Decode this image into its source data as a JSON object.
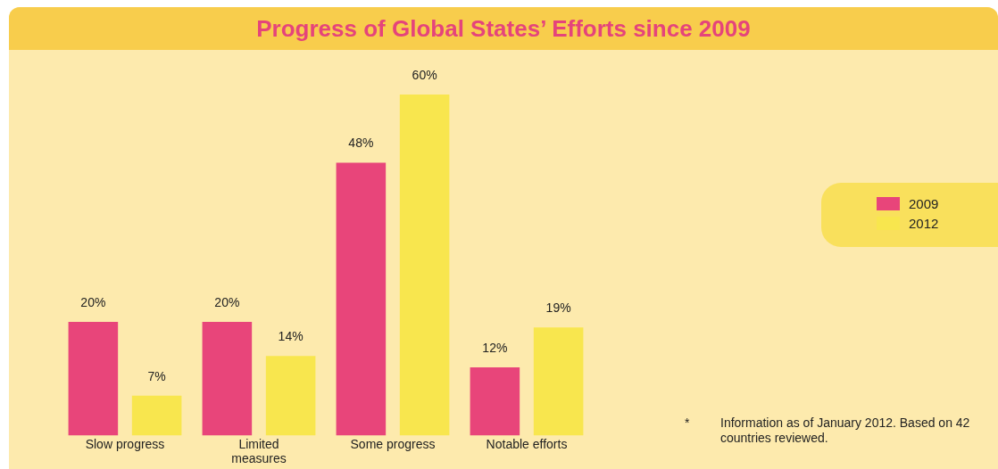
{
  "chart_data": {
    "type": "bar",
    "title": "Progress of Global States’ Efforts since 2009",
    "categories": [
      "Slow progress",
      "Limited measures",
      "Some progress",
      "Notable efforts"
    ],
    "series": [
      {
        "name": "2009",
        "color": "#e8457a",
        "values": [
          20,
          20,
          48,
          12
        ],
        "value_labels": [
          "20%",
          "20%",
          "48%",
          "12%"
        ]
      },
      {
        "name": "2012",
        "color": "#f8e64e",
        "values": [
          7,
          14,
          60,
          19
        ],
        "value_labels": [
          "7%",
          "14%",
          "60%",
          "19%"
        ]
      }
    ],
    "tick_labels": "x",
    "legend": "right",
    "grid": false,
    "annotations": [
      "*",
      "Information as of January 2012. Based on 42 countries reviewed."
    ]
  }
}
